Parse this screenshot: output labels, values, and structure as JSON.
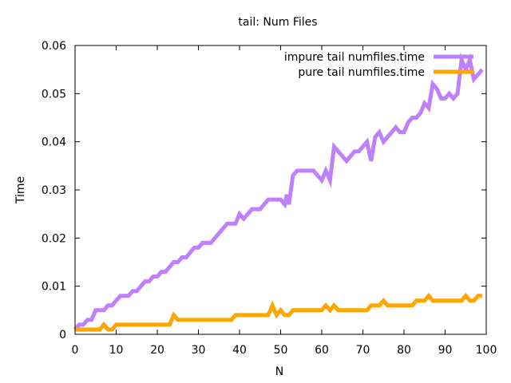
{
  "chart_data": {
    "type": "line",
    "title": "tail: Num Files",
    "xlabel": "N",
    "ylabel": "Time",
    "xlim": [
      0,
      100
    ],
    "ylim": [
      0,
      0.06
    ],
    "xticks": [
      0,
      10,
      20,
      30,
      40,
      50,
      60,
      70,
      80,
      90,
      100
    ],
    "yticks": [
      0,
      0.01,
      0.02,
      0.03,
      0.04,
      0.05,
      0.06
    ],
    "xtick_labels": [
      "0",
      "10",
      "20",
      "30",
      "40",
      "50",
      "60",
      "70",
      "80",
      "90",
      "100"
    ],
    "ytick_labels": [
      "0",
      "0.01",
      "0.02",
      "0.03",
      "0.04",
      "0.05",
      "0.06"
    ],
    "grid": false,
    "legend_position": "top-right",
    "series": [
      {
        "name": "impure tail numfiles.time",
        "color": "#bf80ff",
        "points": [
          [
            0,
            0.001
          ],
          [
            1,
            0.002
          ],
          [
            2,
            0.002
          ],
          [
            3,
            0.003
          ],
          [
            4,
            0.003
          ],
          [
            5,
            0.005
          ],
          [
            6,
            0.005
          ],
          [
            7,
            0.005
          ],
          [
            8,
            0.006
          ],
          [
            9,
            0.006
          ],
          [
            10,
            0.007
          ],
          [
            11,
            0.008
          ],
          [
            12,
            0.008
          ],
          [
            13,
            0.008
          ],
          [
            14,
            0.009
          ],
          [
            15,
            0.009
          ],
          [
            16,
            0.01
          ],
          [
            17,
            0.011
          ],
          [
            18,
            0.011
          ],
          [
            19,
            0.012
          ],
          [
            20,
            0.012
          ],
          [
            21,
            0.013
          ],
          [
            22,
            0.013
          ],
          [
            23,
            0.014
          ],
          [
            24,
            0.015
          ],
          [
            25,
            0.015
          ],
          [
            26,
            0.016
          ],
          [
            27,
            0.016
          ],
          [
            28,
            0.017
          ],
          [
            29,
            0.018
          ],
          [
            30,
            0.018
          ],
          [
            31,
            0.019
          ],
          [
            32,
            0.019
          ],
          [
            33,
            0.019
          ],
          [
            34,
            0.02
          ],
          [
            35,
            0.021
          ],
          [
            36,
            0.022
          ],
          [
            37,
            0.023
          ],
          [
            38,
            0.023
          ],
          [
            39,
            0.023
          ],
          [
            40,
            0.025
          ],
          [
            41,
            0.024
          ],
          [
            42,
            0.025
          ],
          [
            43,
            0.026
          ],
          [
            44,
            0.026
          ],
          [
            45,
            0.026
          ],
          [
            46,
            0.027
          ],
          [
            47,
            0.028
          ],
          [
            48,
            0.028
          ],
          [
            49,
            0.028
          ],
          [
            50,
            0.028
          ],
          [
            51,
            0.027
          ],
          [
            51.5,
            0.029
          ],
          [
            52,
            0.027
          ],
          [
            53,
            0.033
          ],
          [
            54,
            0.034
          ],
          [
            55,
            0.034
          ],
          [
            56,
            0.034
          ],
          [
            57,
            0.034
          ],
          [
            58,
            0.034
          ],
          [
            59,
            0.033
          ],
          [
            60,
            0.032
          ],
          [
            61,
            0.034
          ],
          [
            62,
            0.032
          ],
          [
            63,
            0.039
          ],
          [
            64,
            0.038
          ],
          [
            65,
            0.037
          ],
          [
            66,
            0.036
          ],
          [
            67,
            0.037
          ],
          [
            68,
            0.038
          ],
          [
            69,
            0.038
          ],
          [
            70,
            0.039
          ],
          [
            71,
            0.04
          ],
          [
            72,
            0.036
          ],
          [
            73,
            0.041
          ],
          [
            74,
            0.042
          ],
          [
            75,
            0.04
          ],
          [
            76,
            0.041
          ],
          [
            77,
            0.042
          ],
          [
            78,
            0.043
          ],
          [
            79,
            0.042
          ],
          [
            80,
            0.042
          ],
          [
            81,
            0.044
          ],
          [
            82,
            0.045
          ],
          [
            83,
            0.045
          ],
          [
            84,
            0.046
          ],
          [
            85,
            0.048
          ],
          [
            86,
            0.047
          ],
          [
            87,
            0.052
          ],
          [
            88,
            0.051
          ],
          [
            89,
            0.049
          ],
          [
            90,
            0.049
          ],
          [
            91,
            0.05
          ],
          [
            92,
            0.049
          ],
          [
            93,
            0.05
          ],
          [
            94,
            0.057
          ],
          [
            95,
            0.055
          ],
          [
            96,
            0.057
          ],
          [
            97,
            0.053
          ],
          [
            98,
            0.054
          ],
          [
            99,
            0.055
          ]
        ]
      },
      {
        "name": "pure tail numfiles.time",
        "color": "#ffa500",
        "points": [
          [
            0,
            0.001
          ],
          [
            1,
            0.001
          ],
          [
            2,
            0.001
          ],
          [
            3,
            0.001
          ],
          [
            4,
            0.001
          ],
          [
            5,
            0.001
          ],
          [
            6,
            0.001
          ],
          [
            7,
            0.002
          ],
          [
            8,
            0.001
          ],
          [
            9,
            0.001
          ],
          [
            10,
            0.002
          ],
          [
            11,
            0.002
          ],
          [
            12,
            0.002
          ],
          [
            13,
            0.002
          ],
          [
            14,
            0.002
          ],
          [
            15,
            0.002
          ],
          [
            16,
            0.002
          ],
          [
            17,
            0.002
          ],
          [
            18,
            0.002
          ],
          [
            19,
            0.002
          ],
          [
            20,
            0.002
          ],
          [
            21,
            0.002
          ],
          [
            22,
            0.002
          ],
          [
            23,
            0.002
          ],
          [
            24,
            0.004
          ],
          [
            25,
            0.003
          ],
          [
            26,
            0.003
          ],
          [
            27,
            0.003
          ],
          [
            28,
            0.003
          ],
          [
            29,
            0.003
          ],
          [
            30,
            0.003
          ],
          [
            31,
            0.003
          ],
          [
            32,
            0.003
          ],
          [
            33,
            0.003
          ],
          [
            34,
            0.003
          ],
          [
            35,
            0.003
          ],
          [
            36,
            0.003
          ],
          [
            37,
            0.003
          ],
          [
            38,
            0.003
          ],
          [
            39,
            0.004
          ],
          [
            40,
            0.004
          ],
          [
            41,
            0.004
          ],
          [
            42,
            0.004
          ],
          [
            43,
            0.004
          ],
          [
            44,
            0.004
          ],
          [
            45,
            0.004
          ],
          [
            46,
            0.004
          ],
          [
            47,
            0.004
          ],
          [
            48,
            0.006
          ],
          [
            49,
            0.004
          ],
          [
            50,
            0.005
          ],
          [
            51,
            0.004
          ],
          [
            52,
            0.004
          ],
          [
            53,
            0.005
          ],
          [
            54,
            0.005
          ],
          [
            55,
            0.005
          ],
          [
            56,
            0.005
          ],
          [
            57,
            0.005
          ],
          [
            58,
            0.005
          ],
          [
            59,
            0.005
          ],
          [
            60,
            0.005
          ],
          [
            61,
            0.006
          ],
          [
            62,
            0.005
          ],
          [
            63,
            0.006
          ],
          [
            64,
            0.005
          ],
          [
            65,
            0.005
          ],
          [
            66,
            0.005
          ],
          [
            67,
            0.005
          ],
          [
            68,
            0.005
          ],
          [
            69,
            0.005
          ],
          [
            70,
            0.005
          ],
          [
            71,
            0.005
          ],
          [
            72,
            0.006
          ],
          [
            73,
            0.006
          ],
          [
            74,
            0.006
          ],
          [
            75,
            0.007
          ],
          [
            76,
            0.006
          ],
          [
            77,
            0.006
          ],
          [
            78,
            0.006
          ],
          [
            79,
            0.006
          ],
          [
            80,
            0.006
          ],
          [
            81,
            0.006
          ],
          [
            82,
            0.006
          ],
          [
            83,
            0.007
          ],
          [
            84,
            0.007
          ],
          [
            85,
            0.007
          ],
          [
            86,
            0.008
          ],
          [
            87,
            0.007
          ],
          [
            88,
            0.007
          ],
          [
            89,
            0.007
          ],
          [
            90,
            0.007
          ],
          [
            91,
            0.007
          ],
          [
            92,
            0.007
          ],
          [
            93,
            0.007
          ],
          [
            94,
            0.007
          ],
          [
            95,
            0.008
          ],
          [
            96,
            0.007
          ],
          [
            97,
            0.007
          ],
          [
            98,
            0.008
          ],
          [
            99,
            0.008
          ]
        ]
      }
    ]
  }
}
